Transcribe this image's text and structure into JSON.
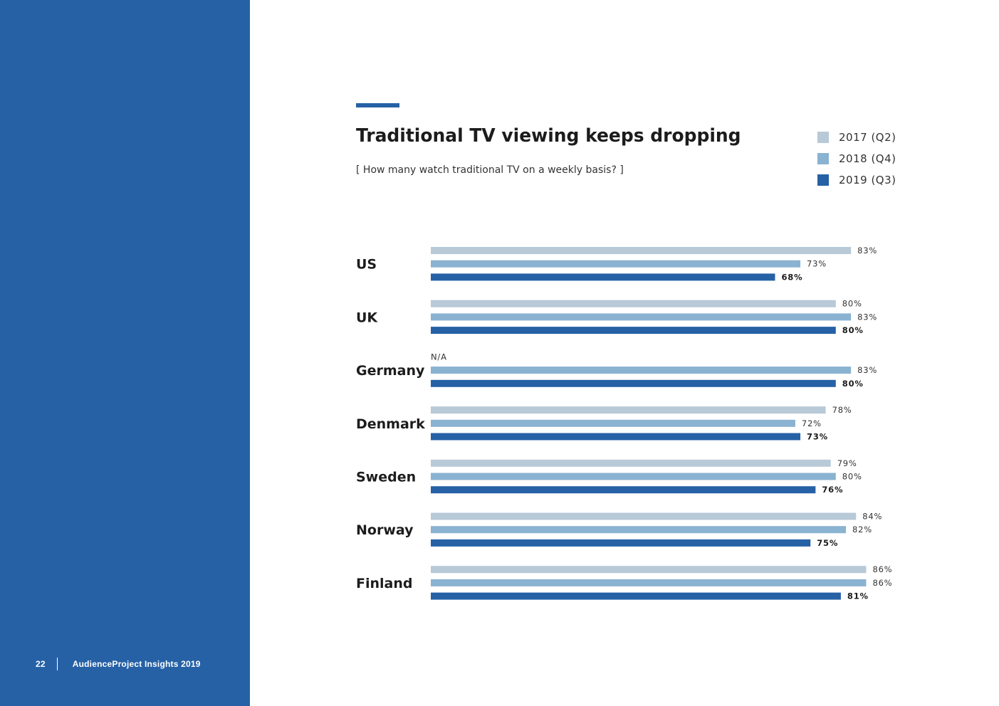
{
  "page": {
    "number": "22",
    "publication": "AudienceProject Insights 2019"
  },
  "colors": {
    "sidebar": "#2661a6",
    "accent": "#2661a6",
    "series": [
      "#b8c9d7",
      "#8ab2d1",
      "#2661a6"
    ]
  },
  "chart_data": {
    "type": "bar",
    "orientation": "horizontal",
    "title": "Traditional TV viewing keeps dropping",
    "subtitle": "[ How many watch traditional TV on a weekly basis? ]",
    "xlim": [
      0,
      100
    ],
    "unit": "%",
    "categories": [
      "US",
      "UK",
      "Germany",
      "Denmark",
      "Sweden",
      "Norway",
      "Finland"
    ],
    "series": [
      {
        "name": "2017 (Q2)",
        "color": "#b8c9d7",
        "values": [
          83,
          80,
          null,
          78,
          79,
          84,
          86
        ]
      },
      {
        "name": "2018 (Q4)",
        "color": "#8ab2d1",
        "values": [
          73,
          83,
          83,
          72,
          80,
          82,
          86
        ]
      },
      {
        "name": "2019 (Q3)",
        "color": "#2661a6",
        "values": [
          68,
          80,
          80,
          73,
          76,
          75,
          81
        ]
      }
    ],
    "missing_label": "N/A",
    "legend_position": "top-right",
    "grid": false
  }
}
